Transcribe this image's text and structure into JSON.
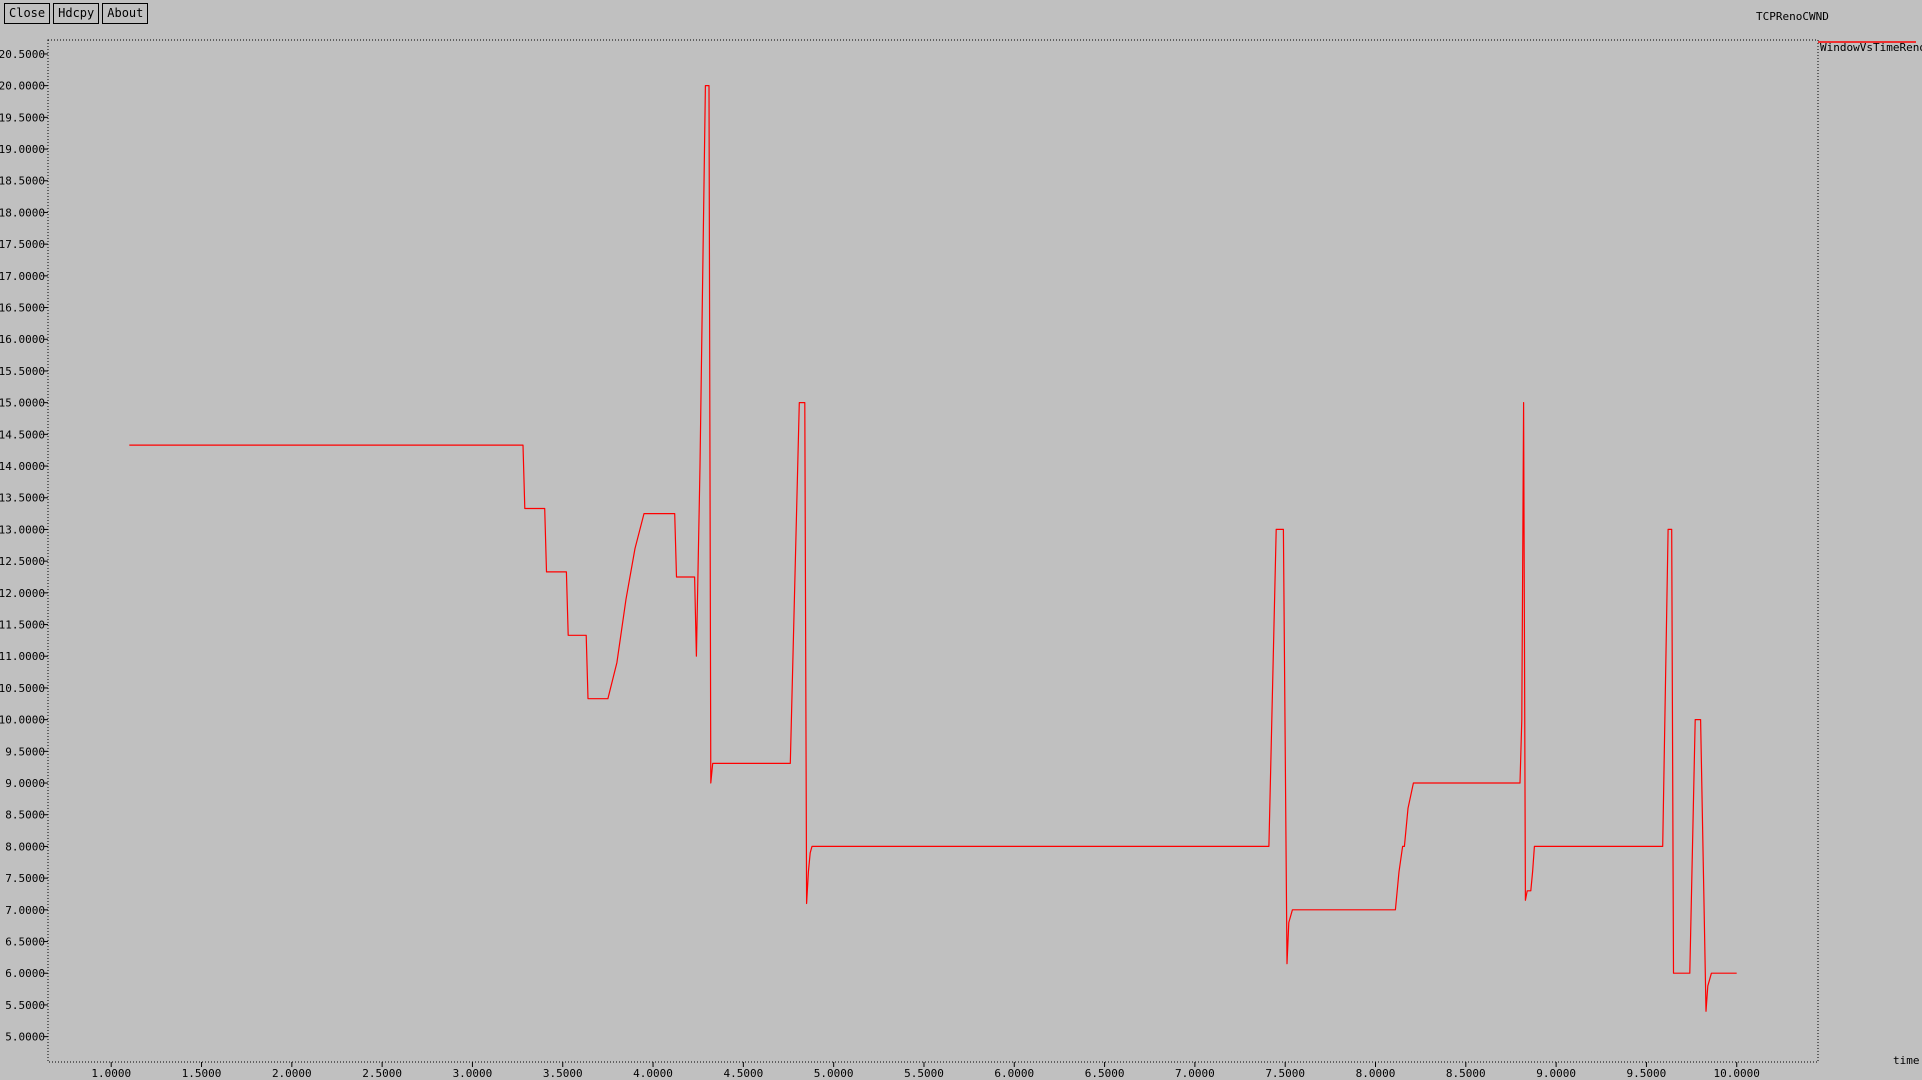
{
  "window": {
    "title": "TCPRenoCWND"
  },
  "toolbar": {
    "close": "Close",
    "hdcpy": "Hdcpy",
    "about": "About"
  },
  "colors": {
    "background": "#c0c0c0",
    "series": "#ff0000",
    "axis": "#000000"
  },
  "chart_data": {
    "type": "line",
    "title": "TCPRenoCWND",
    "xlabel": "time",
    "ylabel": "",
    "xlim": [
      0.65,
      10.45
    ],
    "ylim": [
      4.6,
      20.72
    ],
    "grid": false,
    "legend_placement": "top-right",
    "x_ticks": [
      1.0,
      1.5,
      2.0,
      2.5,
      3.0,
      3.5,
      4.0,
      4.5,
      5.0,
      5.5,
      6.0,
      6.5,
      7.0,
      7.5,
      8.0,
      8.5,
      9.0,
      9.5,
      10.0
    ],
    "x_tick_labels": [
      "1.0000",
      "1.5000",
      "2.0000",
      "2.5000",
      "3.0000",
      "3.5000",
      "4.0000",
      "4.5000",
      "5.0000",
      "5.5000",
      "6.0000",
      "6.5000",
      "7.0000",
      "7.5000",
      "8.0000",
      "8.5000",
      "9.0000",
      "9.5000",
      "10.0000"
    ],
    "y_ticks": [
      5.0,
      5.5,
      6.0,
      6.5,
      7.0,
      7.5,
      8.0,
      8.5,
      9.0,
      9.5,
      10.0,
      10.5,
      11.0,
      11.5,
      12.0,
      12.5,
      13.0,
      13.5,
      14.0,
      14.5,
      15.0,
      15.5,
      16.0,
      16.5,
      17.0,
      17.5,
      18.0,
      18.5,
      19.0,
      19.5,
      20.0,
      20.5
    ],
    "y_tick_labels": [
      "5.0000",
      "5.5000",
      "6.0000",
      "6.5000",
      "7.0000",
      "7.5000",
      "8.0000",
      "8.5000",
      "9.0000",
      "9.5000",
      "10.0000",
      "10.5000",
      "11.0000",
      "11.5000",
      "12.0000",
      "12.5000",
      "13.0000",
      "13.5000",
      "14.0000",
      "14.5000",
      "15.0000",
      "15.5000",
      "16.0000",
      "16.5000",
      "17.0000",
      "17.5000",
      "18.0000",
      "18.5000",
      "19.0000",
      "19.5000",
      "20.0000",
      "20.5000"
    ],
    "series": [
      {
        "name": "WindowVsTimeReno",
        "color": "#ff0000",
        "x": [
          1.1,
          3.28,
          3.29,
          3.4,
          3.41,
          3.52,
          3.53,
          3.63,
          3.64,
          3.75,
          3.8,
          3.85,
          3.9,
          3.95,
          4.12,
          4.13,
          4.23,
          4.24,
          4.26,
          4.29,
          4.31,
          4.32,
          4.33,
          4.76,
          4.81,
          4.84,
          4.85,
          4.86,
          4.87,
          4.88,
          7.41,
          7.45,
          7.49,
          7.51,
          7.52,
          7.54,
          8.11,
          8.13,
          8.15,
          8.16,
          8.18,
          8.21,
          8.22,
          8.8,
          8.81,
          8.82,
          8.83,
          8.84,
          8.86,
          8.87,
          8.88,
          8.91,
          9.59,
          9.62,
          9.64,
          9.65,
          9.74,
          9.77,
          9.8,
          9.83,
          9.84,
          9.86,
          10.0
        ],
        "y": [
          14.33,
          14.33,
          13.33,
          13.33,
          12.33,
          12.33,
          11.33,
          11.33,
          10.33,
          10.33,
          10.9,
          11.9,
          12.7,
          13.25,
          13.25,
          12.25,
          12.25,
          11.0,
          14.0,
          20.0,
          20.0,
          9.0,
          9.31,
          9.31,
          15.0,
          15.0,
          7.1,
          7.6,
          7.9,
          8.0,
          8.0,
          13.0,
          13.0,
          6.15,
          6.8,
          7.0,
          7.0,
          7.6,
          8.0,
          8.0,
          8.6,
          9.0,
          9.0,
          9.0,
          10.0,
          15.0,
          7.15,
          7.3,
          7.3,
          7.6,
          8.0,
          8.0,
          8.0,
          13.0,
          13.0,
          6.0,
          6.0,
          10.0,
          10.0,
          5.4,
          5.8,
          6.0,
          6.0
        ]
      }
    ]
  }
}
